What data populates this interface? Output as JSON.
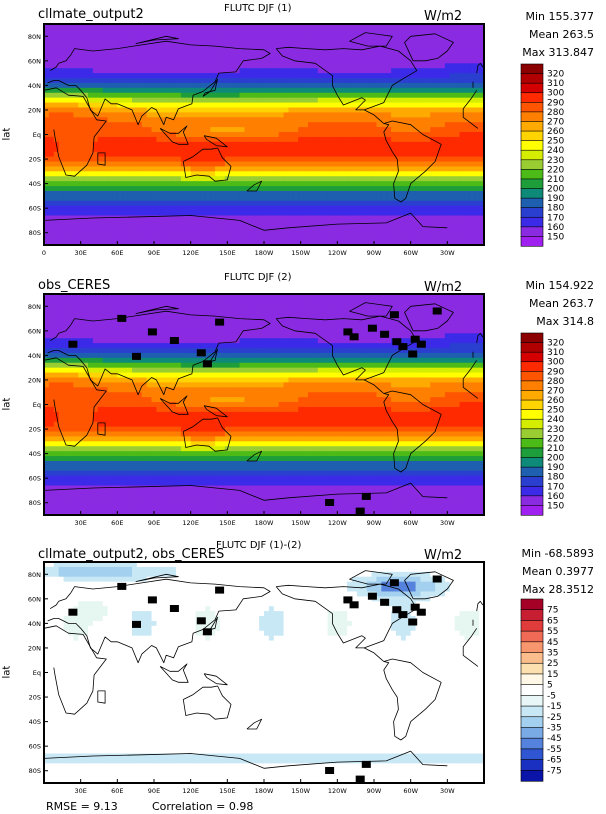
{
  "chart_data": [
    {
      "type": "heatmap",
      "case_name": "cllmate_output2",
      "title": "FLUTC DJF (1)",
      "units": "W/m2",
      "ylabel": "lat",
      "stats": {
        "min": "Min 155.377",
        "mean": "Mean 263.5",
        "max": "Max 313.847"
      },
      "x_ticks": [
        "0",
        "30E",
        "60E",
        "90E",
        "120E",
        "150E",
        "180W",
        "150W",
        "120W",
        "90W",
        "60W",
        "30W"
      ],
      "y_ticks": [
        "80N",
        "60N",
        "40N",
        "20N",
        "Eq",
        "20S",
        "40S",
        "60S",
        "80S"
      ],
      "colorbar": {
        "levels": [
          "320",
          "310",
          "300",
          "290",
          "280",
          "270",
          "260",
          "250",
          "240",
          "230",
          "220",
          "210",
          "200",
          "190",
          "180",
          "170",
          "160",
          "150"
        ],
        "colors": [
          "#8b0000",
          "#b00000",
          "#d40000",
          "#ff2a00",
          "#ff5500",
          "#ff8000",
          "#ffaa00",
          "#ffd400",
          "#ffff00",
          "#d4ed00",
          "#9acd32",
          "#4cbb17",
          "#1e9e3a",
          "#0e8a78",
          "#1f5fb0",
          "#2a3fd0",
          "#3b2be8",
          "#8a2be2",
          "#a020f0"
        ]
      }
    },
    {
      "type": "heatmap",
      "case_name": "obs_CERES",
      "title": "FLUTC DJF (2)",
      "units": "W/m2",
      "ylabel": "lat",
      "stats": {
        "min": "Min 154.922",
        "mean": "Mean 263.7",
        "max": "Max 314.8"
      },
      "x_ticks": [
        "30E",
        "60E",
        "90E",
        "120E",
        "150E",
        "180W",
        "150W",
        "120W",
        "90W",
        "60W",
        "30W"
      ],
      "y_ticks": [
        "80N",
        "60N",
        "40N",
        "20N",
        "Eq",
        "20S",
        "40S",
        "60S",
        "80S"
      ],
      "colorbar": {
        "levels": [
          "320",
          "310",
          "300",
          "290",
          "280",
          "270",
          "260",
          "250",
          "240",
          "230",
          "220",
          "210",
          "200",
          "190",
          "180",
          "170",
          "160",
          "150"
        ],
        "colors": [
          "#8b0000",
          "#b00000",
          "#d40000",
          "#ff2a00",
          "#ff5500",
          "#ff8000",
          "#ffaa00",
          "#ffd400",
          "#ffff00",
          "#d4ed00",
          "#9acd32",
          "#4cbb17",
          "#1e9e3a",
          "#0e8a78",
          "#1f5fb0",
          "#2a3fd0",
          "#3b2be8",
          "#8a2be2",
          "#a020f0"
        ]
      }
    },
    {
      "type": "heatmap",
      "case_name": "cllmate_output2, obs_CERES",
      "title": "FLUTC DJF (1)-(2)",
      "units": "W/m2",
      "ylabel": "lat",
      "stats": {
        "min": "Min -68.5893",
        "mean": "Mean 0.3977",
        "max": "Max 28.3512"
      },
      "x_ticks": [
        "30E",
        "60E",
        "90E",
        "120E",
        "150E",
        "180W",
        "150W",
        "120W",
        "90W",
        "60W",
        "30W"
      ],
      "y_ticks": [
        "80N",
        "60N",
        "40N",
        "20N",
        "Eq",
        "20S",
        "40S",
        "60S",
        "80S"
      ],
      "colorbar": {
        "levels": [
          "75",
          "65",
          "55",
          "45",
          "35",
          "25",
          "15",
          "5",
          "-5",
          "-15",
          "-25",
          "-35",
          "-45",
          "-55",
          "-65",
          "-75"
        ],
        "colors": [
          "#a50026",
          "#c81e32",
          "#e03c3c",
          "#f06a55",
          "#f8966e",
          "#fbbd8c",
          "#fde0b0",
          "#fff8e6",
          "#ffffff",
          "#e8f6f8",
          "#c8e8f5",
          "#a4d0f0",
          "#7aaae6",
          "#5582dc",
          "#2f55d2",
          "#1a30c0",
          "#0a14a8"
        ]
      },
      "footer": {
        "rmse": "RMSE = 9.13",
        "correlation": "Correlation = 0.98"
      }
    }
  ]
}
